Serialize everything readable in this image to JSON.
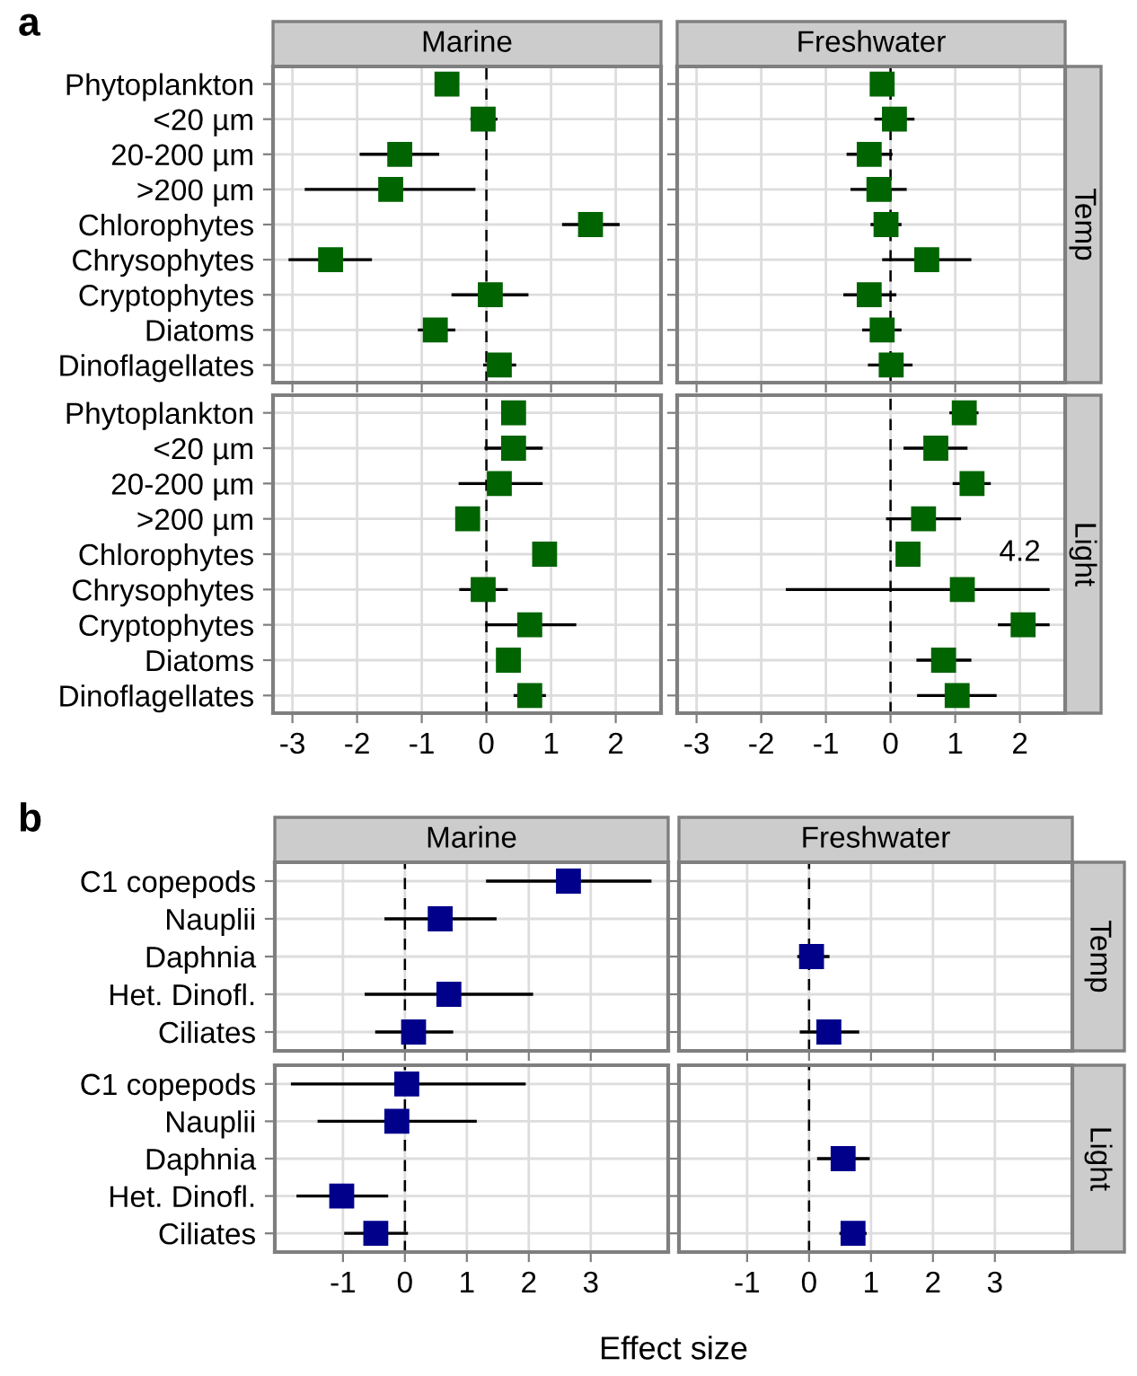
{
  "chart_data": [
    {
      "type": "scatter",
      "orientation": "horizontal",
      "title": "Marine",
      "annotations": [
        "a"
      ],
      "tick_labels": "y",
      "categories": [
        "Phytoplankton",
        "<20 µm",
        "20-200 µm",
        ">200 µm",
        "Chlorophytes",
        "Chrysophytes",
        "Cryptophytes",
        "Diatoms",
        "Dinoflagellates"
      ],
      "values": [
        -0.61,
        -0.05,
        -1.34,
        -1.48,
        1.61,
        -2.41,
        0.06,
        -0.79,
        0.2
      ],
      "errors": [
        null,
        [
          -0.25,
          0.17
        ],
        [
          -1.96,
          -0.73
        ],
        [
          -2.81,
          -0.17
        ],
        [
          1.17,
          2.06
        ],
        [
          -3.06,
          -1.77
        ],
        [
          -0.54,
          0.65
        ],
        [
          -1.06,
          -0.48
        ],
        [
          -0.05,
          0.46
        ]
      ],
      "color": "#006400",
      "marker": "square",
      "xlim": [
        -3.3,
        2.7
      ],
      "xticks": [
        -3,
        -2,
        -1,
        0,
        1,
        2
      ],
      "grid": true,
      "ref_lines": [
        {
          "axis": "x",
          "value": 0,
          "line_style": "dashed"
        }
      ]
    },
    {
      "type": "scatter",
      "orientation": "horizontal",
      "title": "Freshwater",
      "y2label": "Temp",
      "tick_labels": false,
      "categories": [
        "Phytoplankton",
        "<20 µm",
        "20-200 µm",
        ">200 µm",
        "Chlorophytes",
        "Chrysophytes",
        "Cryptophytes",
        "Diatoms",
        "Dinoflagellates"
      ],
      "values": [
        -0.13,
        0.06,
        -0.33,
        -0.18,
        -0.07,
        0.56,
        -0.33,
        -0.13,
        0.01
      ],
      "errors": [
        null,
        [
          -0.25,
          0.37
        ],
        [
          -0.68,
          0.03
        ],
        [
          -0.62,
          0.25
        ],
        [
          -0.31,
          0.17
        ],
        [
          -0.13,
          1.25
        ],
        [
          -0.73,
          0.09
        ],
        [
          -0.44,
          0.17
        ],
        [
          -0.35,
          0.34
        ]
      ],
      "color": "#006400",
      "marker": "square",
      "xlim": [
        -3.3,
        2.7
      ],
      "xticks": [
        -3,
        -2,
        -1,
        0,
        1,
        2
      ],
      "grid": true,
      "ref_lines": [
        {
          "axis": "x",
          "value": 0,
          "line_style": "dashed"
        }
      ]
    },
    {
      "type": "scatter",
      "orientation": "horizontal",
      "categories": [
        "Phytoplankton",
        "<20 µm",
        "20-200 µm",
        ">200 µm",
        "Chlorophytes",
        "Chrysophytes",
        "Cryptophytes",
        "Diatoms",
        "Dinoflagellates"
      ],
      "values": [
        0.42,
        0.42,
        0.2,
        -0.29,
        0.9,
        -0.05,
        0.67,
        0.34,
        0.67
      ],
      "errors": [
        null,
        [
          -0.03,
          0.87
        ],
        [
          -0.43,
          0.87
        ],
        null,
        null,
        [
          -0.42,
          0.33
        ],
        [
          -0.02,
          1.39
        ],
        null,
        [
          0.42,
          0.92
        ]
      ],
      "color": "#006400",
      "marker": "square",
      "xlim": [
        -3.3,
        2.7
      ],
      "xticks": [
        -3,
        -2,
        -1,
        0,
        1,
        2
      ],
      "grid": true,
      "ref_lines": [
        {
          "axis": "x",
          "value": 0,
          "line_style": "dashed"
        }
      ]
    },
    {
      "type": "scatter",
      "orientation": "horizontal",
      "y2label": "Light",
      "tick_labels": "x",
      "annotations": [
        {
          "text": "4.2",
          "x": 2.0,
          "y": "Chrysophytes"
        }
      ],
      "categories": [
        "Phytoplankton",
        "<20 µm",
        "20-200 µm",
        ">200 µm",
        "Chlorophytes",
        "Chrysophytes",
        "Cryptophytes",
        "Diatoms",
        "Dinoflagellates"
      ],
      "values": [
        1.14,
        0.7,
        1.26,
        0.51,
        0.27,
        1.11,
        2.05,
        0.82,
        1.03
      ],
      "errors": [
        [
          0.91,
          1.36
        ],
        [
          0.2,
          1.19
        ],
        [
          0.96,
          1.55
        ],
        [
          -0.07,
          1.09
        ],
        null,
        [
          -1.62,
          2.46
        ],
        [
          1.66,
          2.46
        ],
        [
          0.4,
          1.25
        ],
        [
          0.41,
          1.64
        ]
      ],
      "color": "#006400",
      "marker": "square",
      "xlim": [
        -3.3,
        2.7
      ],
      "xticks": [
        -3,
        -2,
        -1,
        0,
        1,
        2
      ],
      "grid": true,
      "ref_lines": [
        {
          "axis": "x",
          "value": 0,
          "line_style": "dashed"
        }
      ]
    },
    {
      "type": "scatter",
      "orientation": "horizontal",
      "title": "Marine",
      "annotations": [
        "b"
      ],
      "tick_labels": "y",
      "categories": [
        "C1 copepods",
        "Nauplii",
        "Daphnia",
        "Het. Dinofl.",
        "Ciliates"
      ],
      "values": [
        2.64,
        0.57,
        null,
        0.71,
        0.14
      ],
      "errors": [
        [
          1.31,
          3.98
        ],
        [
          -0.33,
          1.48
        ],
        null,
        [
          -0.65,
          2.07
        ],
        [
          -0.48,
          0.78
        ]
      ],
      "color": "#00008b",
      "marker": "square",
      "xlim": [
        -2.1,
        4.25
      ],
      "xticks": [
        -1,
        0,
        1,
        2,
        3
      ],
      "grid": true,
      "ref_lines": [
        {
          "axis": "x",
          "value": 0,
          "line_style": "dashed"
        }
      ]
    },
    {
      "type": "scatter",
      "orientation": "horizontal",
      "title": "Freshwater",
      "y2label": "Temp",
      "tick_labels": false,
      "categories": [
        "C1 copepods",
        "Nauplii",
        "Daphnia",
        "Het. Dinofl.",
        "Ciliates"
      ],
      "values": [
        null,
        null,
        0.04,
        null,
        0.32
      ],
      "errors": [
        null,
        null,
        [
          -0.19,
          0.33
        ],
        null,
        [
          -0.15,
          0.81
        ]
      ],
      "color": "#00008b",
      "marker": "square",
      "xlim": [
        -2.1,
        4.25
      ],
      "xticks": [
        -1,
        0,
        1,
        2,
        3
      ],
      "grid": true,
      "ref_lines": [
        {
          "axis": "x",
          "value": 0,
          "line_style": "dashed"
        }
      ]
    },
    {
      "type": "scatter",
      "orientation": "horizontal",
      "xlabel": "Effect size",
      "categories": [
        "C1 copepods",
        "Nauplii",
        "Daphnia",
        "Het. Dinofl.",
        "Ciliates"
      ],
      "values": [
        0.03,
        -0.13,
        null,
        -1.02,
        -0.47
      ],
      "errors": [
        [
          -1.84,
          1.95
        ],
        [
          -1.41,
          1.16
        ],
        null,
        [
          -1.75,
          -0.27
        ],
        [
          -0.98,
          0.05
        ]
      ],
      "color": "#00008b",
      "marker": "square",
      "xlim": [
        -2.1,
        4.25
      ],
      "xticks": [
        -1,
        0,
        1,
        2,
        3
      ],
      "grid": true,
      "ref_lines": [
        {
          "axis": "x",
          "value": 0,
          "line_style": "dashed"
        }
      ]
    },
    {
      "type": "scatter",
      "orientation": "horizontal",
      "y2label": "Light",
      "tick_labels": "x",
      "categories": [
        "C1 copepods",
        "Nauplii",
        "Daphnia",
        "Het. Dinofl.",
        "Ciliates"
      ],
      "values": [
        null,
        null,
        0.55,
        null,
        0.71
      ],
      "errors": [
        null,
        null,
        [
          0.13,
          0.98
        ],
        null,
        [
          0.49,
          0.93
        ]
      ],
      "color": "#00008b",
      "marker": "square",
      "xlim": [
        -2.1,
        4.25
      ],
      "xticks": [
        -1,
        0,
        1,
        2,
        3
      ],
      "grid": true,
      "ref_lines": [
        {
          "axis": "x",
          "value": 0,
          "line_style": "dashed"
        }
      ]
    }
  ]
}
